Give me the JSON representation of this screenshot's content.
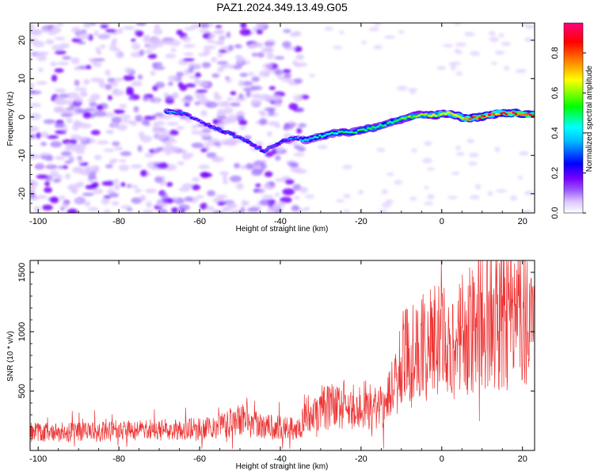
{
  "title": "PAZ1.2024.349.13.49.G05",
  "chart_data": [
    {
      "type": "heatmap",
      "xlabel": "Height of straight line (km)",
      "ylabel": "Frequency (Hz)",
      "xlim": [
        -102,
        23
      ],
      "ylim": [
        -25,
        24.5
      ],
      "x_ticks": [
        -100,
        -80,
        -60,
        -40,
        -20,
        0,
        20
      ],
      "y_ticks": [
        -20,
        -10,
        0,
        10,
        20
      ],
      "colorbar": {
        "label": "Normalized spectral amplitude",
        "range": [
          0,
          0.95
        ],
        "ticks": [
          0.0,
          0.2,
          0.4,
          0.6,
          0.8
        ],
        "colormap": [
          "#ffffff",
          "#dcc6ff",
          "#9b59ff",
          "#7a00ff",
          "#0000ff",
          "#00ffff",
          "#00ff00",
          "#ffff00",
          "#ff8000",
          "#ff0000",
          "#ff0080"
        ]
      },
      "signal_track": {
        "x": [
          -68,
          -64,
          -60,
          -56,
          -52,
          -48,
          -44,
          -40,
          -36,
          -34,
          -30,
          -26,
          -22,
          -18,
          -14,
          -10,
          -6,
          -2,
          2,
          6,
          10,
          14,
          18,
          23
        ],
        "frequency": [
          1.5,
          1.0,
          -1.0,
          -3.0,
          -4.5,
          -6.5,
          -9.0,
          -6.5,
          -5.5,
          -6.0,
          -5.0,
          -4.0,
          -4.0,
          -3.0,
          -2.0,
          -0.5,
          0.5,
          0.5,
          1.0,
          -0.5,
          0.0,
          1.0,
          1.0,
          0.5
        ],
        "amplitude": [
          0.4,
          0.3,
          0.2,
          0.3,
          0.3,
          0.3,
          0.3,
          0.3,
          0.35,
          0.4,
          0.45,
          0.45,
          0.5,
          0.55,
          0.5,
          0.55,
          0.6,
          0.65,
          0.7,
          0.75,
          0.85,
          0.8,
          0.85,
          0.9
        ]
      }
    },
    {
      "type": "line",
      "xlabel": "Height of straight line (km)",
      "ylabel": "SNR (10 * v/v)",
      "xlim": [
        -102,
        23
      ],
      "ylim": [
        0,
        1600
      ],
      "x_ticks": [
        -100,
        -80,
        -60,
        -40,
        -20,
        0,
        20
      ],
      "y_ticks": [
        500,
        1000,
        1500
      ],
      "color": "#ee3333",
      "envelope": {
        "x": [
          -102,
          -80,
          -60,
          -55,
          -50,
          -45,
          -40,
          -35,
          -34,
          -30,
          -25,
          -20,
          -15,
          -12,
          -10,
          -5,
          0,
          5,
          10,
          15,
          20,
          23
        ],
        "y": [
          150,
          160,
          180,
          200,
          260,
          220,
          190,
          180,
          320,
          360,
          380,
          400,
          350,
          500,
          750,
          850,
          950,
          900,
          1150,
          1100,
          1200,
          1250
        ]
      }
    }
  ]
}
